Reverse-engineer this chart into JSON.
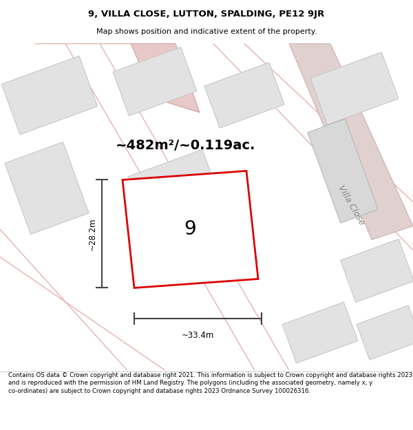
{
  "title": "9, VILLA CLOSE, LUTTON, SPALDING, PE12 9JR",
  "subtitle": "Map shows position and indicative extent of the property.",
  "footer": "Contains OS data © Crown copyright and database right 2021. This information is subject to Crown copyright and database rights 2023 and is reproduced with the permission of HM Land Registry. The polygons (including the associated geometry, namely x, y co-ordinates) are subject to Crown copyright and database rights 2023 Ordnance Survey 100026316.",
  "area_label": "~482m²/~0.119ac.",
  "width_label": "~33.4m",
  "height_label": "~28.2m",
  "plot_number": "9",
  "road_label": "Villa Close",
  "red_color": "#dd0000",
  "building_color": "#e2e2e2",
  "building_edge": "#c8c8c8",
  "road_fill": "#e8c8c8",
  "road_edge": "#d0a0a0",
  "pink_line": "#e8b0b0",
  "dim_color": "#444444",
  "map_bg": "#f0f0f0",
  "white": "#ffffff"
}
